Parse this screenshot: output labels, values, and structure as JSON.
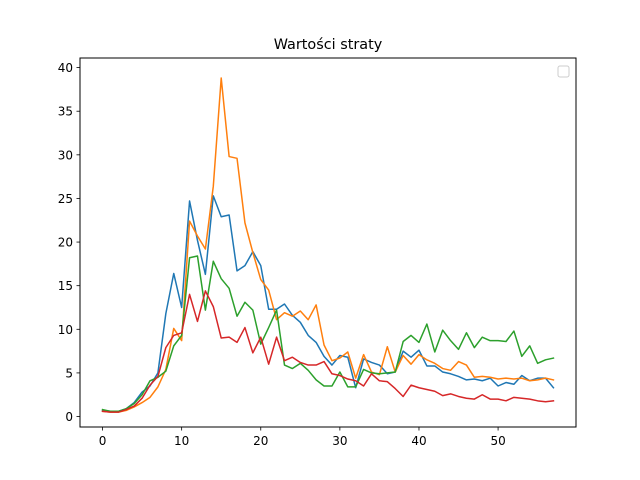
{
  "chart_data": {
    "type": "line",
    "title": "Wartości straty",
    "xlabel": "",
    "ylabel": "",
    "xlim": [
      -2.85,
      59.85
    ],
    "ylim": [
      -1.2,
      41.1
    ],
    "xticks": [
      0,
      10,
      20,
      30,
      40,
      50
    ],
    "yticks": [
      0,
      5,
      10,
      15,
      20,
      25,
      30,
      35,
      40
    ],
    "grid": false,
    "legend": "top-right (empty)",
    "x": [
      0,
      1,
      2,
      3,
      4,
      5,
      6,
      7,
      8,
      9,
      10,
      11,
      12,
      13,
      14,
      15,
      16,
      17,
      18,
      19,
      20,
      21,
      22,
      23,
      24,
      25,
      26,
      27,
      28,
      29,
      30,
      31,
      32,
      33,
      34,
      35,
      36,
      37,
      38,
      39,
      40,
      41,
      42,
      43,
      44,
      45,
      46,
      47,
      48,
      49,
      50,
      51,
      52,
      53,
      54,
      55,
      56,
      57
    ],
    "series": [
      {
        "color": "#1f77b4",
        "values": [
          0.7,
          0.6,
          0.6,
          0.9,
          1.6,
          2.8,
          3.5,
          5.0,
          11.8,
          16.4,
          12.5,
          24.7,
          20.2,
          16.3,
          25.3,
          22.9,
          23.1,
          16.7,
          17.3,
          18.9,
          17.3,
          12.3,
          12.3,
          12.9,
          11.6,
          10.8,
          9.3,
          8.5,
          6.9,
          5.9,
          7.0,
          6.8,
          3.3,
          6.6,
          6.2,
          5.9,
          4.9,
          5.1,
          7.5,
          6.8,
          7.6,
          5.8,
          5.8,
          5.1,
          4.9,
          4.6,
          4.2,
          4.3,
          4.1,
          4.4,
          3.5,
          3.9,
          3.7,
          4.7,
          4.1,
          4.4,
          4.4,
          3.3
        ]
      },
      {
        "color": "#ff7f0e",
        "values": [
          0.6,
          0.5,
          0.5,
          0.7,
          1.1,
          1.6,
          2.2,
          3.4,
          5.4,
          10.1,
          8.7,
          22.4,
          20.7,
          19.2,
          26.4,
          38.8,
          29.8,
          29.6,
          22.2,
          18.8,
          15.7,
          14.5,
          11.1,
          11.9,
          11.5,
          12.1,
          11.1,
          12.8,
          8.2,
          6.4,
          6.7,
          7.4,
          4.4,
          7.1,
          5.1,
          4.8,
          8.0,
          5.1,
          7.0,
          6.0,
          7.1,
          6.5,
          6.1,
          5.5,
          5.3,
          6.3,
          5.9,
          4.5,
          4.6,
          4.5,
          4.3,
          4.4,
          4.3,
          4.4,
          4.1,
          4.2,
          4.4,
          4.2
        ]
      },
      {
        "color": "#2ca02c",
        "values": [
          0.8,
          0.6,
          0.6,
          0.9,
          1.5,
          2.5,
          4.1,
          4.5,
          5.2,
          8.1,
          9.3,
          18.2,
          18.4,
          12.2,
          17.8,
          15.8,
          14.7,
          11.5,
          13.1,
          12.2,
          8.3,
          10.2,
          12.2,
          5.9,
          5.5,
          6.1,
          5.3,
          4.2,
          3.5,
          3.5,
          5.1,
          3.4,
          3.4,
          5.4,
          5.0,
          4.9,
          5.0,
          5.1,
          8.6,
          9.3,
          8.5,
          10.6,
          7.4,
          9.9,
          8.7,
          7.7,
          9.6,
          7.9,
          9.1,
          8.7,
          8.7,
          8.6,
          9.8,
          6.9,
          8.1,
          6.1,
          6.5,
          6.7
        ]
      },
      {
        "color": "#d62728",
        "values": [
          0.6,
          0.5,
          0.5,
          0.8,
          1.2,
          2.1,
          3.6,
          4.6,
          7.9,
          9.3,
          9.6,
          14.0,
          10.9,
          14.4,
          12.6,
          9.0,
          9.1,
          8.5,
          10.2,
          7.3,
          9.1,
          6.0,
          9.1,
          6.4,
          6.8,
          6.2,
          5.9,
          5.9,
          6.3,
          4.9,
          4.7,
          4.3,
          4.1,
          3.5,
          4.9,
          4.1,
          4.0,
          3.2,
          2.3,
          3.6,
          3.3,
          3.1,
          2.9,
          2.4,
          2.6,
          2.3,
          2.1,
          2.0,
          2.5,
          2.0,
          2.0,
          1.8,
          2.2,
          2.1,
          2.0,
          1.8,
          1.7,
          1.8
        ]
      }
    ]
  }
}
